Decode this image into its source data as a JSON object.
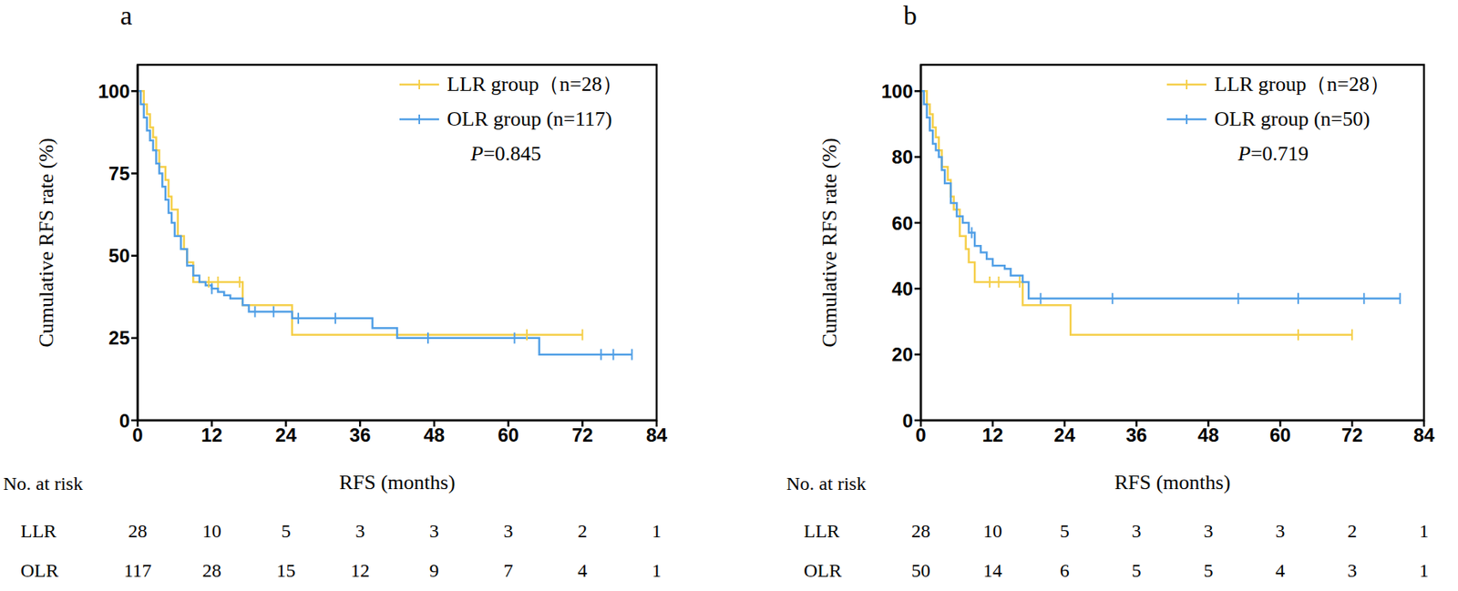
{
  "chart_data": [
    {
      "type": "line",
      "title": "a",
      "x_label": "RFS (months)",
      "y_label": "Cumulative RFS rate (%)",
      "xlim": [
        0,
        84
      ],
      "xticks": [
        0,
        12,
        24,
        36,
        48,
        60,
        72,
        84
      ],
      "ylim": [
        0,
        108
      ],
      "yticks": [
        0,
        25,
        50,
        75,
        100
      ],
      "legend": "upper right",
      "annotation": "P=0.845",
      "series": [
        {
          "name": "LLR group（n=28）",
          "color": "#f5cf4a",
          "line_style": "step",
          "marker": "tick",
          "x": [
            0,
            1,
            1.5,
            2,
            2.5,
            3,
            3.5,
            4.5,
            5,
            5.5,
            6.5,
            7.5,
            8,
            9,
            17,
            25,
            72
          ],
          "values": [
            100,
            96,
            93,
            89,
            86,
            82,
            77,
            73,
            68,
            64,
            56,
            52,
            48,
            42,
            35,
            26,
            26
          ],
          "censored": {
            "x": [
              11.5,
              13,
              16.5,
              63,
              72
            ],
            "values": [
              42,
              42,
              42,
              26,
              26
            ]
          }
        },
        {
          "name": "OLR group (n=117)",
          "color": "#519fe6",
          "line_style": "step",
          "marker": "tick",
          "x": [
            0,
            0.5,
            1,
            1.5,
            2,
            2.5,
            3,
            3.5,
            4,
            4.5,
            5,
            5.5,
            6,
            7,
            8,
            9,
            10,
            11,
            12,
            13,
            14,
            15,
            17,
            18,
            25,
            38,
            42,
            65,
            80
          ],
          "values": [
            100,
            96,
            92,
            88,
            85,
            82,
            78,
            75,
            71,
            67,
            63,
            60,
            56,
            52,
            47,
            44,
            42,
            41,
            40,
            39,
            38,
            37,
            35,
            33,
            31,
            28,
            25,
            20,
            20
          ],
          "censored": {
            "x": [
              12,
              19,
              22,
              26,
              32,
              47,
              61,
              75,
              77,
              80
            ],
            "values": [
              40,
              33,
              33,
              31,
              31,
              25,
              25,
              20,
              20,
              20
            ]
          }
        }
      ],
      "risk_table": {
        "title": "No. at risk",
        "rows": [
          {
            "name": "LLR",
            "values": [
              28,
              10,
              5,
              3,
              3,
              3,
              2,
              1
            ]
          },
          {
            "name": "OLR",
            "values": [
              117,
              28,
              15,
              12,
              9,
              7,
              4,
              1
            ]
          }
        ]
      }
    },
    {
      "type": "line",
      "title": "b",
      "x_label": "RFS (months)",
      "y_label": "Cumulative RFS rate (%)",
      "xlim": [
        0,
        84
      ],
      "xticks": [
        0,
        12,
        24,
        36,
        48,
        60,
        72,
        84
      ],
      "ylim": [
        0,
        108
      ],
      "yticks": [
        0,
        20,
        40,
        60,
        80,
        100
      ],
      "legend": "upper right",
      "annotation": "P=0.719",
      "series": [
        {
          "name": "LLR group（n=28）",
          "color": "#f5cf4a",
          "line_style": "step",
          "marker": "tick",
          "x": [
            0,
            1,
            1.5,
            2,
            2.5,
            3,
            3.5,
            4.5,
            5,
            5.5,
            6.5,
            7.5,
            8,
            9,
            17,
            25,
            72
          ],
          "values": [
            100,
            96,
            93,
            89,
            86,
            82,
            77,
            73,
            68,
            64,
            56,
            52,
            48,
            42,
            35,
            26,
            26
          ],
          "censored": {
            "x": [
              11.5,
              13,
              16.5,
              63,
              72
            ],
            "values": [
              42,
              42,
              42,
              26,
              26
            ]
          }
        },
        {
          "name": "OLR group (n=50)",
          "color": "#519fe6",
          "line_style": "step",
          "marker": "tick",
          "x": [
            0,
            0.5,
            1,
            1.5,
            2,
            2.5,
            3,
            3.5,
            4,
            5,
            6,
            7,
            8,
            9,
            10,
            11,
            12,
            14,
            15,
            17,
            18,
            80
          ],
          "values": [
            100,
            96,
            92,
            88,
            84,
            82,
            80,
            76,
            72,
            66,
            62,
            60,
            57,
            53,
            51,
            49,
            47,
            46,
            44,
            42,
            37,
            37
          ],
          "censored": {
            "x": [
              8.5,
              20,
              32,
              53,
              63,
              74,
              80
            ],
            "values": [
              57,
              37,
              37,
              37,
              37,
              37,
              37
            ]
          }
        }
      ],
      "risk_table": {
        "title": "No. at risk",
        "rows": [
          {
            "name": "LLR",
            "values": [
              28,
              10,
              5,
              3,
              3,
              3,
              2,
              1
            ]
          },
          {
            "name": "OLR",
            "values": [
              50,
              14,
              6,
              5,
              5,
              4,
              3,
              1
            ]
          }
        ]
      }
    }
  ]
}
